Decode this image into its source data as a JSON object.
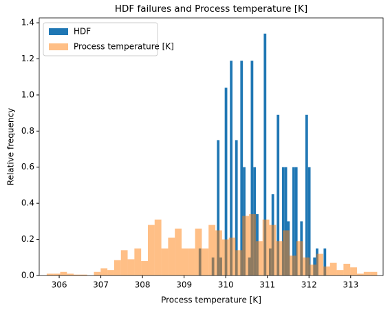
{
  "chart_data": {
    "type": "histogram",
    "title": "HDF failures and Process temperature [K]",
    "x_label": "Process temperature [K]",
    "y_label": "Relative frequency",
    "xlim": [
      305.52,
      313.78
    ],
    "ylim": [
      0,
      1.427
    ],
    "xticks": [
      306,
      307,
      308,
      309,
      310,
      311,
      312,
      313
    ],
    "yticks": [
      {
        "value": 0,
        "label": "0.0"
      },
      0.2,
      0.4,
      0.6,
      0.8,
      {
        "value": 1,
        "label": "1.0"
      },
      1.2,
      1.4
    ],
    "legend": "upper left",
    "series": [
      {
        "name": "HDF",
        "color": "#1f77b4",
        "opacity": 1,
        "bins": [
          309.35,
          309.4125,
          309.475,
          309.5375,
          309.6,
          309.6625,
          309.725,
          309.7875,
          309.85,
          309.9125,
          309.975,
          310.0375,
          310.1,
          310.1625,
          310.225,
          310.2875,
          310.35,
          310.4125,
          310.475,
          310.5375,
          310.6,
          310.6625,
          310.725,
          310.7875,
          310.85,
          310.9125,
          310.975,
          311.0375,
          311.1,
          311.1625,
          311.225,
          311.2875,
          311.35,
          311.4125,
          311.475,
          311.5375,
          311.6,
          311.6625,
          311.725,
          311.7875,
          311.85,
          311.9125,
          311.975,
          312.0375,
          312.1,
          312.1625,
          312.225,
          312.2875,
          312.35,
          312.4125
        ],
        "values": [
          0.15,
          0,
          0,
          0,
          0,
          0.1,
          0,
          0.75,
          0.1,
          0,
          1.04,
          0,
          1.19,
          0,
          0.75,
          0,
          1.19,
          0.6,
          0,
          0.1,
          1.19,
          0.6,
          0.34,
          0,
          0,
          1.34,
          0,
          0.15,
          0.45,
          0,
          0.89,
          0,
          0.6,
          0.6,
          0.3,
          0,
          0.6,
          0.6,
          0,
          0.3,
          0,
          0.89,
          0.6,
          0,
          0.1,
          0.15,
          0,
          0,
          0.15
        ]
      },
      {
        "name": "Process temperature [K]",
        "color": "#ff7f0e",
        "opacity": 0.5,
        "bins": [
          305.7,
          305.862,
          306.024,
          306.186,
          306.348,
          306.51,
          306.672,
          306.834,
          306.996,
          307.158,
          307.32,
          307.482,
          307.644,
          307.806,
          307.968,
          308.13,
          308.292,
          308.454,
          308.616,
          308.778,
          308.94,
          309.102,
          309.264,
          309.426,
          309.588,
          309.75,
          309.912,
          310.074,
          310.236,
          310.398,
          310.56,
          310.722,
          310.884,
          311.046,
          311.208,
          311.37,
          311.532,
          311.694,
          311.856,
          312.018,
          312.18,
          312.342,
          312.504,
          312.666,
          312.828,
          312.99,
          313.152,
          313.314,
          313.476,
          313.638,
          313.8
        ],
        "values": [
          0.01,
          0.01,
          0.02,
          0.01,
          0.005,
          0.005,
          0,
          0.02,
          0.04,
          0.03,
          0.085,
          0.14,
          0.09,
          0.15,
          0.08,
          0.28,
          0.31,
          0.15,
          0.21,
          0.26,
          0.15,
          0.15,
          0.26,
          0.15,
          0.28,
          0.25,
          0.2,
          0.21,
          0.14,
          0.33,
          0.34,
          0.19,
          0.31,
          0.28,
          0.19,
          0.25,
          0.11,
          0.19,
          0.1,
          0.06,
          0.12,
          0.05,
          0.07,
          0.03,
          0.065,
          0.045,
          0.01,
          0.02,
          0.02,
          0
        ]
      }
    ]
  }
}
